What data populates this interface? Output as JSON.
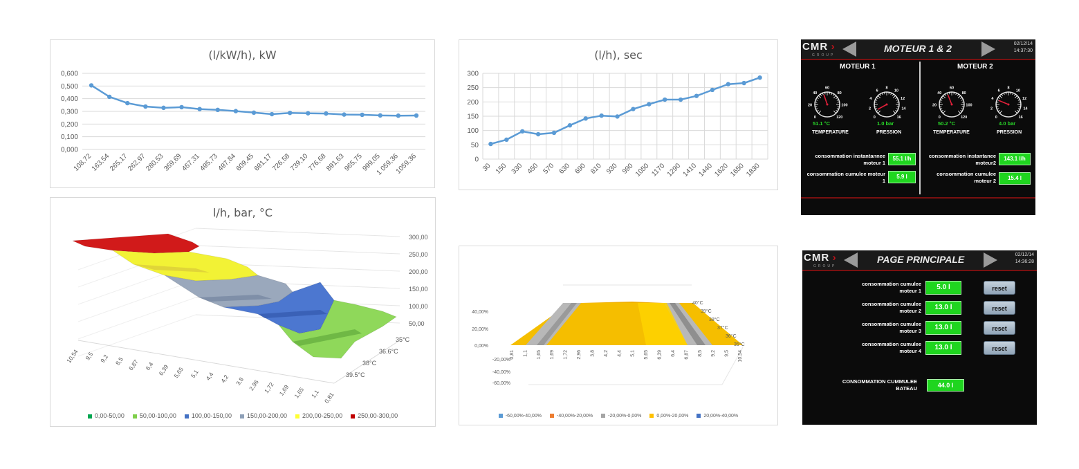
{
  "chart_data": [
    {
      "type": "line",
      "title": "(l/kW/h), kW",
      "xlabel": "",
      "ylabel": "",
      "ylim": [
        0,
        0.6
      ],
      "yticks": [
        "0,000",
        "0,100",
        "0,200",
        "0,300",
        "0,400",
        "0,500",
        "0,600"
      ],
      "categories": [
        "108,72",
        "163,54",
        "265,17",
        "262,97",
        "280,53",
        "359,69",
        "457,31",
        "495,73",
        "497,84",
        "609,45",
        "691,17",
        "726,58",
        "739,10",
        "776,68",
        "891,63",
        "965,75",
        "999,05",
        "1 059,36",
        "1059,36"
      ],
      "values": [
        0.505,
        0.415,
        0.365,
        0.338,
        0.328,
        0.333,
        0.318,
        0.312,
        0.302,
        0.29,
        0.278,
        0.288,
        0.285,
        0.283,
        0.275,
        0.273,
        0.268,
        0.266,
        0.267
      ],
      "grid": true,
      "color": "#5b9bd5"
    },
    {
      "type": "line",
      "title": "(l/h), sec",
      "xlabel": "",
      "ylabel": "",
      "ylim": [
        0,
        300
      ],
      "yticks": [
        "0",
        "50",
        "100",
        "150",
        "200",
        "250",
        "300"
      ],
      "categories": [
        "30",
        "150",
        "330",
        "450",
        "570",
        "630",
        "690",
        "810",
        "930",
        "990",
        "1050",
        "1170",
        "1290",
        "1410",
        "1440",
        "1620",
        "1650",
        "1830"
      ],
      "values": [
        53,
        68,
        97,
        87,
        92,
        118,
        142,
        152,
        149,
        175,
        192,
        208,
        208,
        221,
        242,
        262,
        266,
        285
      ],
      "grid": true,
      "color": "#5b9bd5"
    },
    {
      "type": "surface",
      "title": "l/h, bar, °C",
      "zticks": [
        "300,00",
        "250,00",
        "200,00",
        "150,00",
        "100,00",
        "50,00"
      ],
      "xticks": [
        "10,54",
        "9,5",
        "9,2",
        "8,5",
        "6,87",
        "6,4",
        "6,39",
        "5,65",
        "5,1",
        "4,4",
        "4,2",
        "3,8",
        "2,96",
        "1,72",
        "1,69",
        "1,65",
        "1,1",
        "0,81"
      ],
      "yticks": [
        "35°C",
        "36.6°C",
        "38°C",
        "39.5°C"
      ],
      "legend": [
        {
          "label": "0,00-50,00",
          "color": "#00a650"
        },
        {
          "label": "50,00-100,00",
          "color": "#7fcf4a"
        },
        {
          "label": "100,00-150,00",
          "color": "#4472c4"
        },
        {
          "label": "150,00-200,00",
          "color": "#8ea0b8"
        },
        {
          "label": "200,00-250,00",
          "color": "#ffff33"
        },
        {
          "label": "250,00-300,00",
          "color": "#c00000"
        }
      ],
      "bands": [
        {
          "color": "#d11a1a",
          "z": [
            280,
            260
          ]
        },
        {
          "color": "#f2f235",
          "z": [
            255,
            200
          ]
        },
        {
          "color": "#9aa8bc",
          "z": [
            195,
            150
          ]
        },
        {
          "color": "#4c77d0",
          "z": [
            145,
            100
          ]
        },
        {
          "color": "#8fd85a",
          "z": [
            95,
            50
          ]
        }
      ]
    },
    {
      "type": "surface",
      "title": "",
      "zticks": [
        "40,00%",
        "20,00%",
        "0,00%",
        "-20,00%",
        "-40,00%",
        "-60,00%"
      ],
      "xticks": [
        "0,81",
        "1,1",
        "1,65",
        "1,69",
        "1,72",
        "2,96",
        "3,8",
        "4,2",
        "4,4",
        "5,1",
        "5,65",
        "6,39",
        "6,4",
        "6,87",
        "8,5",
        "9,2",
        "9,5",
        "10,54"
      ],
      "yticks": [
        "40°C",
        "39°C",
        "38°C",
        "37°C",
        "36°C",
        "35°C"
      ],
      "legend": [
        {
          "label": "-60,00%-40,00%",
          "color": "#5b9bd5"
        },
        {
          "label": "-40,00%-20,00%",
          "color": "#ed7d31"
        },
        {
          "label": "-20,00%-0,00%",
          "color": "#a5a5a5"
        },
        {
          "label": "0,00%-20,00%",
          "color": "#ffc000"
        },
        {
          "label": "20,00%-40,00%",
          "color": "#4472c4"
        }
      ]
    }
  ],
  "hmi1": {
    "brand": "CMR",
    "brand_sub": "GROUP",
    "title": "MOTEUR 1 & 2",
    "date": "02/12/14",
    "time": "14:37:30",
    "left": {
      "title": "MOTEUR 1",
      "temp_value": "51.1 °C",
      "press_value": "1.0 bar",
      "temp_label": "TEMPERATURE",
      "press_label": "PRESSION",
      "row1_label": "consommation instantannee moteur 1",
      "row1_value": "55.1 l/h",
      "row2_label": "consommation cumulee moteur 1",
      "row2_value": "5.9 l"
    },
    "right": {
      "title": "MOTEUR 2",
      "temp_value": "50.2 °C",
      "press_value": "4.0 bar",
      "temp_label": "TEMPERATURE",
      "press_label": "PRESSION",
      "row1_label": "consommation instantanee moteur2",
      "row1_value": "143.1 l/h",
      "row2_label": "consommation cumulee moteur 2",
      "row2_value": "15.4 l"
    },
    "temp_gauge_ticks": [
      "0",
      "20",
      "40",
      "60",
      "80",
      "100",
      "120"
    ],
    "press_gauge_ticks": [
      "0",
      "2",
      "4",
      "6",
      "8",
      "10",
      "12",
      "14",
      "16"
    ],
    "temp_fraction_1": 0.43,
    "press_fraction_1": 0.06,
    "temp_fraction_2": 0.42,
    "press_fraction_2": 0.25
  },
  "hmi2": {
    "brand": "CMR",
    "brand_sub": "GROUP",
    "title": "PAGE PRINCIPALE",
    "date": "02/12/14",
    "time": "14:36:28",
    "rows": [
      {
        "label": "consommation cumulee moteur 1",
        "value": "5.0 l",
        "button": "reset"
      },
      {
        "label": "consommation cumulee moteur 2",
        "value": "13.0 l",
        "button": "reset"
      },
      {
        "label": "consommation cumulee moteur 3",
        "value": "13.0 l",
        "button": "reset"
      },
      {
        "label": "consommation cumulee moteur 4",
        "value": "13.0 l",
        "button": "reset"
      }
    ],
    "total_label": "CONSOMMATION CUMMULEE BATEAU",
    "total_value": "44.0 l"
  }
}
